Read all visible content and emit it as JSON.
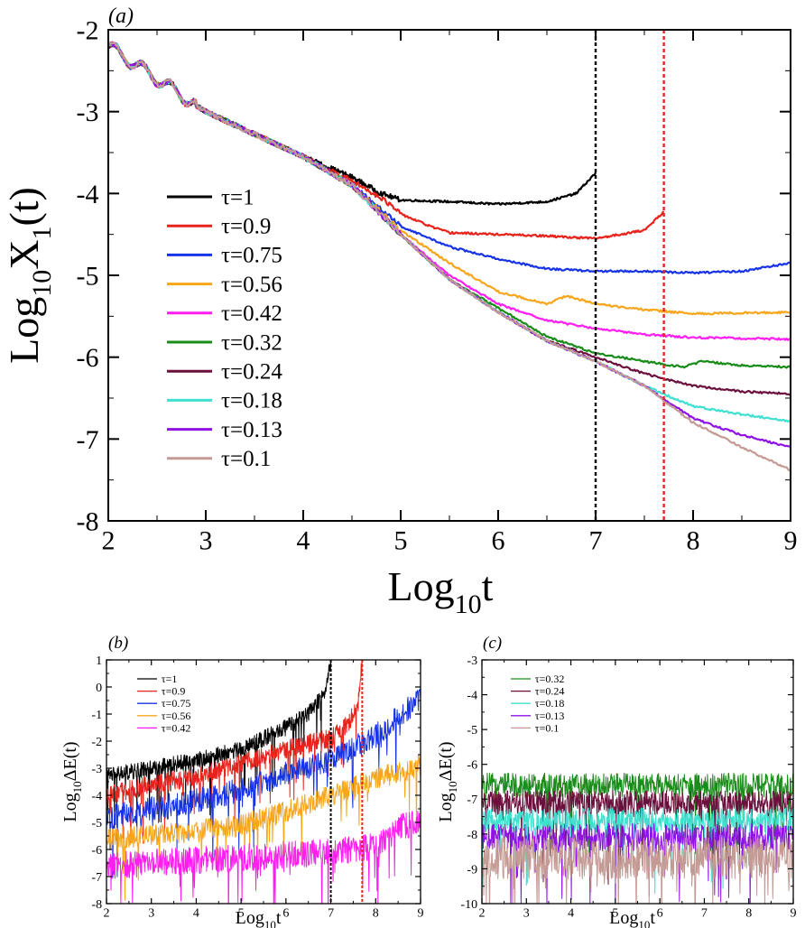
{
  "chart_data": [
    {
      "panel_label": "(a)",
      "type": "line",
      "xlabel_main": "Log",
      "xlabel_sub": "10",
      "xlabel_tail": "t",
      "ylabel_main": "Log",
      "ylabel_sub": "10",
      "ylabel_tail": "X",
      "ylabel_sub2": "1",
      "ylabel_end": "(t)",
      "xlim": [
        2,
        9
      ],
      "ylim": [
        -8,
        -2
      ],
      "xticks": [
        "2",
        "3",
        "4",
        "5",
        "6",
        "7",
        "8",
        "9"
      ],
      "yticks": [
        "-8",
        "-7",
        "-6",
        "-5",
        "-4",
        "-3",
        "-2"
      ],
      "vlines": [
        {
          "x": 7.0,
          "color": "#000000"
        },
        {
          "x": 7.7,
          "color": "#e8231c"
        }
      ],
      "series": [
        {
          "name": "τ=1",
          "color": "#000000",
          "x": [
            2,
            3,
            4,
            4.5,
            4.8,
            5.0,
            5.5,
            6.0,
            6.5,
            6.8,
            7.0
          ],
          "y": [
            -2.2,
            -3.0,
            -3.55,
            -3.8,
            -4.0,
            -4.08,
            -4.1,
            -4.13,
            -4.1,
            -4.0,
            -3.75
          ]
        },
        {
          "name": "τ=0.9",
          "color": "#e8231c",
          "x": [
            2,
            3,
            4,
            4.5,
            4.8,
            5.0,
            5.3,
            5.5,
            6.0,
            6.5,
            7.0,
            7.5,
            7.7
          ],
          "y": [
            -2.2,
            -3.0,
            -3.55,
            -3.85,
            -4.05,
            -4.25,
            -4.4,
            -4.48,
            -4.5,
            -4.52,
            -4.55,
            -4.45,
            -4.22
          ]
        },
        {
          "name": "τ=0.75",
          "color": "#1733e6",
          "x": [
            2,
            3,
            4,
            4.5,
            5.0,
            5.5,
            6.0,
            6.5,
            7.0,
            7.5,
            8.0,
            8.5,
            9.0
          ],
          "y": [
            -2.2,
            -3.0,
            -3.55,
            -3.9,
            -4.4,
            -4.65,
            -4.8,
            -4.92,
            -4.95,
            -4.95,
            -4.97,
            -4.95,
            -4.85
          ]
        },
        {
          "name": "τ=0.56",
          "color": "#f7a61b",
          "x": [
            2,
            3,
            4,
            4.5,
            5.0,
            5.5,
            6.0,
            6.5,
            6.7,
            7.0,
            7.5,
            8.0,
            8.5,
            9.0
          ],
          "y": [
            -2.2,
            -3.0,
            -3.55,
            -3.9,
            -4.45,
            -4.85,
            -5.2,
            -5.35,
            -5.25,
            -5.35,
            -5.42,
            -5.47,
            -5.46,
            -5.45
          ]
        },
        {
          "name": "τ=0.42",
          "color": "#ff1ef0",
          "x": [
            2,
            3,
            4,
            4.5,
            5.0,
            5.5,
            6.0,
            6.5,
            7.0,
            7.5,
            8.0,
            8.5,
            9.0
          ],
          "y": [
            -2.2,
            -3.0,
            -3.55,
            -3.9,
            -4.5,
            -5.0,
            -5.35,
            -5.55,
            -5.65,
            -5.72,
            -5.76,
            -5.77,
            -5.78
          ]
        },
        {
          "name": "τ=0.32",
          "color": "#1a8c1a",
          "x": [
            2,
            3,
            4,
            4.5,
            5.0,
            5.5,
            6.0,
            6.5,
            7.0,
            7.5,
            7.9,
            8.1,
            8.5,
            9.0
          ],
          "y": [
            -2.2,
            -3.0,
            -3.55,
            -3.9,
            -4.5,
            -5.05,
            -5.4,
            -5.75,
            -5.95,
            -6.05,
            -6.12,
            -6.05,
            -6.1,
            -6.12
          ]
        },
        {
          "name": "τ=0.24",
          "color": "#6b0f3c",
          "x": [
            2,
            3,
            4,
            4.5,
            5.0,
            5.5,
            6.0,
            6.5,
            7.0,
            7.5,
            8.0,
            8.5,
            9.0
          ],
          "y": [
            -2.2,
            -3.0,
            -3.55,
            -3.9,
            -4.5,
            -5.05,
            -5.45,
            -5.8,
            -6.0,
            -6.2,
            -6.35,
            -6.42,
            -6.45
          ]
        },
        {
          "name": "τ=0.18",
          "color": "#3fe0d0",
          "x": [
            2,
            3,
            4,
            4.5,
            5.0,
            5.5,
            6.0,
            6.5,
            7.0,
            7.5,
            8.0,
            8.5,
            9.0
          ],
          "y": [
            -2.2,
            -3.0,
            -3.55,
            -3.9,
            -4.5,
            -5.05,
            -5.45,
            -5.8,
            -6.05,
            -6.35,
            -6.6,
            -6.7,
            -6.78
          ]
        },
        {
          "name": "τ=0.13",
          "color": "#8e12e6",
          "x": [
            2,
            3,
            4,
            4.5,
            5.0,
            5.5,
            6.0,
            6.5,
            7.0,
            7.5,
            8.0,
            8.5,
            9.0
          ],
          "y": [
            -2.2,
            -3.0,
            -3.55,
            -3.9,
            -4.5,
            -5.05,
            -5.45,
            -5.8,
            -6.05,
            -6.35,
            -6.75,
            -6.95,
            -7.1
          ]
        },
        {
          "name": "τ=0.1",
          "color": "#c49a94",
          "x": [
            2,
            3,
            4,
            4.5,
            5.0,
            5.5,
            6.0,
            6.5,
            7.0,
            7.5,
            8.0,
            8.5,
            9.0
          ],
          "y": [
            -2.2,
            -3.0,
            -3.55,
            -3.9,
            -4.5,
            -5.05,
            -5.45,
            -5.8,
            -6.05,
            -6.35,
            -6.8,
            -7.1,
            -7.38
          ]
        }
      ]
    },
    {
      "panel_label": "(b)",
      "type": "line",
      "xlabel_main": "Log",
      "xlabel_sub": "10",
      "xlabel_tail": "t",
      "ylabel_main": "Log",
      "ylabel_sub": "10",
      "ylabel_tail": "ΔE(t)",
      "xlim": [
        2,
        9
      ],
      "ylim": [
        -8,
        1
      ],
      "xticks": [
        "2",
        "3",
        "4",
        "5",
        "6",
        "7",
        "8",
        "9"
      ],
      "yticks": [
        "-8",
        "-7",
        "-6",
        "-5",
        "-4",
        "-3",
        "-2",
        "-1",
        "0",
        "1"
      ],
      "vlines": [
        {
          "x": 7.0,
          "color": "#000000"
        },
        {
          "x": 7.7,
          "color": "#e8231c"
        }
      ],
      "series": [
        {
          "name": "τ=1",
          "color": "#000000",
          "x": [
            2,
            3,
            4,
            5,
            6,
            6.5,
            6.9,
            7.0
          ],
          "y": [
            -3.3,
            -3.0,
            -2.7,
            -2.3,
            -1.5,
            -1.0,
            -0.1,
            1.0
          ],
          "noise": 0.3
        },
        {
          "name": "τ=0.9",
          "color": "#e8231c",
          "x": [
            2,
            3,
            4,
            5,
            6,
            7,
            7.3,
            7.6,
            7.7
          ],
          "y": [
            -4.0,
            -3.6,
            -3.3,
            -2.8,
            -2.3,
            -1.9,
            -1.5,
            -0.8,
            1.0
          ],
          "noise": 0.35
        },
        {
          "name": "τ=0.75",
          "color": "#1733e6",
          "x": [
            2,
            3,
            4,
            5,
            6,
            7,
            8,
            9
          ],
          "y": [
            -4.8,
            -4.5,
            -4.2,
            -3.8,
            -3.2,
            -2.7,
            -1.8,
            -0.4
          ],
          "noise": 0.45
        },
        {
          "name": "τ=0.56",
          "color": "#f7a61b",
          "x": [
            2,
            3,
            4,
            5,
            6,
            7,
            8,
            9
          ],
          "y": [
            -5.6,
            -5.5,
            -5.3,
            -5.1,
            -4.6,
            -4.0,
            -3.4,
            -2.9
          ],
          "noise": 0.4
        },
        {
          "name": "τ=0.42",
          "color": "#ff1ef0",
          "x": [
            2,
            3,
            4,
            5,
            6,
            7,
            8,
            8.5,
            9
          ],
          "y": [
            -6.6,
            -6.5,
            -6.4,
            -6.3,
            -6.2,
            -6.1,
            -5.9,
            -5.2,
            -5.0
          ],
          "noise": 0.5
        }
      ]
    },
    {
      "panel_label": "(c)",
      "type": "line",
      "xlabel_main": "Log",
      "xlabel_sub": "10",
      "xlabel_tail": "t",
      "ylabel_main": "Log",
      "ylabel_sub": "10",
      "ylabel_tail": "ΔE(t)",
      "xlim": [
        2,
        9
      ],
      "ylim": [
        -10,
        -3
      ],
      "xticks": [
        "2",
        "3",
        "4",
        "5",
        "6",
        "7",
        "8",
        "9"
      ],
      "yticks": [
        "-10",
        "-9",
        "-8",
        "-7",
        "-6",
        "-5",
        "-4",
        "-3"
      ],
      "series": [
        {
          "name": "τ=0.32",
          "color": "#1a8c1a",
          "x": [
            2,
            9
          ],
          "y": [
            -6.6,
            -6.6
          ],
          "noise": 0.35
        },
        {
          "name": "τ=0.24",
          "color": "#6b0f3c",
          "x": [
            2,
            9
          ],
          "y": [
            -7.1,
            -7.1
          ],
          "noise": 0.35
        },
        {
          "name": "τ=0.18",
          "color": "#3fe0d0",
          "x": [
            2,
            9
          ],
          "y": [
            -7.6,
            -7.6
          ],
          "noise": 0.35
        },
        {
          "name": "τ=0.13",
          "color": "#8e12e6",
          "x": [
            2,
            9
          ],
          "y": [
            -8.1,
            -8.1
          ],
          "noise": 0.4
        },
        {
          "name": "τ=0.1",
          "color": "#c49a94",
          "x": [
            2,
            9
          ],
          "y": [
            -8.7,
            -8.7
          ],
          "noise": 0.6
        }
      ]
    }
  ]
}
